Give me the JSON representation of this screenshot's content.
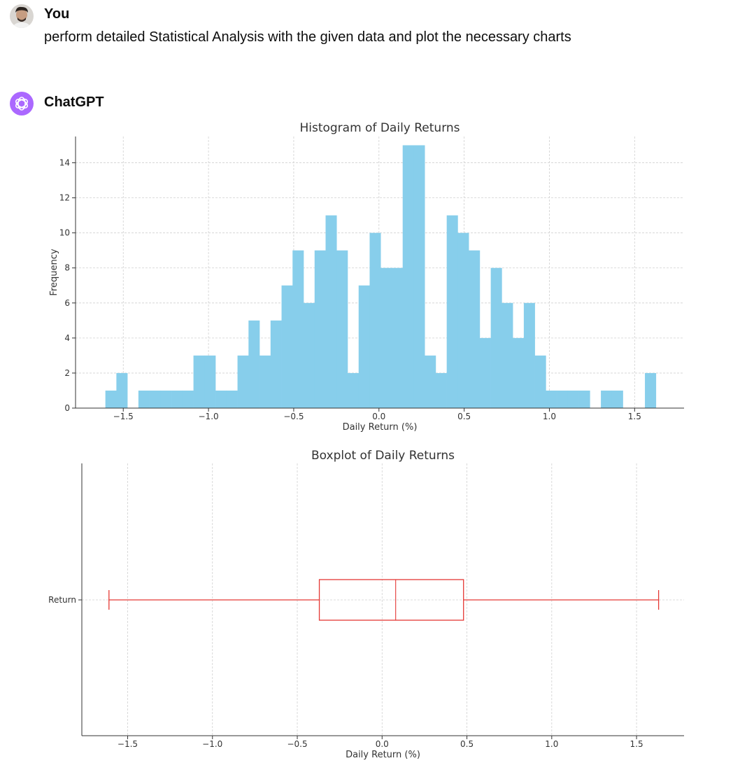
{
  "conversation": {
    "user": {
      "name": "You",
      "message": "perform detailed Statistical Analysis with the given data and plot the necessary charts"
    },
    "assistant": {
      "name": "ChatGPT",
      "avatar_color": "#ab68ff"
    }
  },
  "chart_data": [
    {
      "type": "bar",
      "title": "Histogram of Daily Returns",
      "xlabel": "Daily Return (%)",
      "ylabel": "Frequency",
      "xlim": [
        -1.78,
        1.79
      ],
      "ylim": [
        0,
        15.5
      ],
      "xticks": [
        -1.5,
        -1.0,
        -0.5,
        0.0,
        0.5,
        1.0,
        1.5
      ],
      "xtick_labels": [
        "−1.5",
        "−1.0",
        "−0.5",
        "0.0",
        "0.5",
        "1.0",
        "1.5"
      ],
      "yticks": [
        0,
        2,
        4,
        6,
        8,
        10,
        12,
        14
      ],
      "ytick_labels": [
        "0",
        "2",
        "4",
        "6",
        "8",
        "10",
        "12",
        "14"
      ],
      "bin_start": -1.605,
      "bin_width": 0.0646,
      "counts": [
        1,
        2,
        0,
        1,
        1,
        1,
        1,
        1,
        3,
        3,
        1,
        1,
        3,
        5,
        3,
        5,
        7,
        9,
        6,
        9,
        11,
        9,
        2,
        7,
        10,
        8,
        8,
        15,
        15,
        3,
        2,
        11,
        10,
        9,
        4,
        8,
        6,
        4,
        6,
        3,
        1,
        1,
        1,
        1,
        0,
        1,
        1,
        0,
        0,
        2
      ],
      "bar_color": "#87ceeb",
      "grid": true
    },
    {
      "type": "box",
      "title": "Boxplot of Daily Returns",
      "xlabel": "Daily Return (%)",
      "category": "Return",
      "xlim": [
        -1.77,
        1.78
      ],
      "xticks": [
        -1.5,
        -1.0,
        -0.5,
        0.0,
        0.5,
        1.0,
        1.5
      ],
      "xtick_labels": [
        "−1.5",
        "−1.0",
        "−0.5",
        "0.0",
        "0.5",
        "1.0",
        "1.5"
      ],
      "min": -1.61,
      "q1": -0.37,
      "median": 0.08,
      "q3": 0.48,
      "max": 1.63,
      "color": "#e53935",
      "grid": true
    }
  ]
}
